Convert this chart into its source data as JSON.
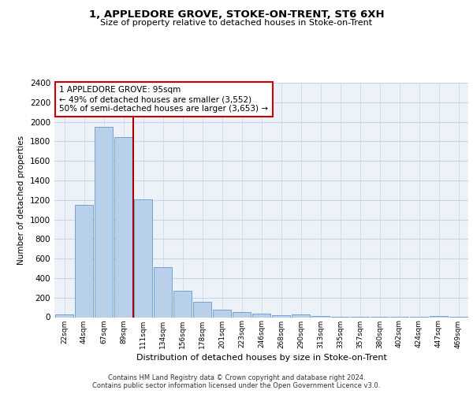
{
  "title": "1, APPLEDORE GROVE, STOKE-ON-TRENT, ST6 6XH",
  "subtitle": "Size of property relative to detached houses in Stoke-on-Trent",
  "xlabel": "Distribution of detached houses by size in Stoke-on-Trent",
  "ylabel": "Number of detached properties",
  "bar_labels": [
    "22sqm",
    "44sqm",
    "67sqm",
    "89sqm",
    "111sqm",
    "134sqm",
    "156sqm",
    "178sqm",
    "201sqm",
    "223sqm",
    "246sqm",
    "268sqm",
    "290sqm",
    "313sqm",
    "335sqm",
    "357sqm",
    "380sqm",
    "402sqm",
    "424sqm",
    "447sqm",
    "469sqm"
  ],
  "bar_values": [
    30,
    1150,
    1950,
    1840,
    1210,
    510,
    270,
    155,
    75,
    50,
    35,
    20,
    30,
    10,
    5,
    4,
    3,
    2,
    2,
    15,
    2
  ],
  "bar_color": "#b8d0ea",
  "bar_edge_color": "#6699cc",
  "vline_x": 3.5,
  "vline_color": "#aa0000",
  "annotation_text": "1 APPLEDORE GROVE: 95sqm\n← 49% of detached houses are smaller (3,552)\n50% of semi-detached houses are larger (3,653) →",
  "annotation_box_color": "#ffffff",
  "annotation_box_edge": "#cc0000",
  "ylim": [
    0,
    2400
  ],
  "yticks": [
    0,
    200,
    400,
    600,
    800,
    1000,
    1200,
    1400,
    1600,
    1800,
    2000,
    2200,
    2400
  ],
  "footer1": "Contains HM Land Registry data © Crown copyright and database right 2024.",
  "footer2": "Contains public sector information licensed under the Open Government Licence v3.0.",
  "grid_color": "#c8d4e8",
  "background_color": "#edf2f9"
}
